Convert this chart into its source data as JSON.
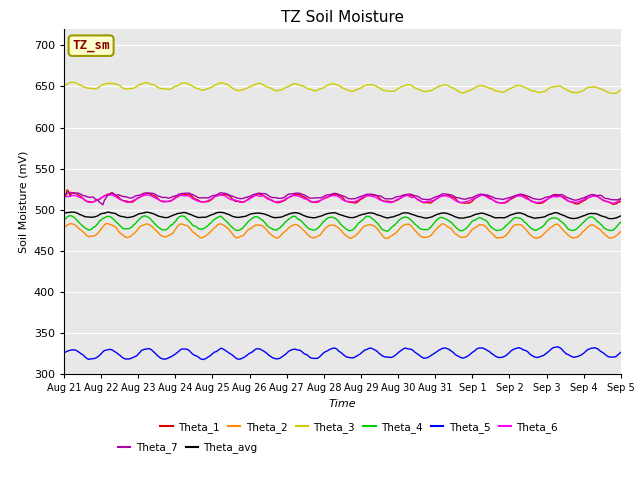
{
  "title": "TZ Soil Moisture",
  "xlabel": "Time",
  "ylabel": "Soil Moisture (mV)",
  "ylim": [
    300,
    720
  ],
  "yticks": [
    300,
    350,
    400,
    450,
    500,
    550,
    600,
    650,
    700
  ],
  "bg_color": "#e8e8e8",
  "n_points": 360,
  "lines": {
    "Theta_1": {
      "color": "#dd0000",
      "base": 515,
      "amplitude": 5,
      "trend": -0.008,
      "noise": 1.0,
      "phase": 0.0
    },
    "Theta_2": {
      "color": "#ff8800",
      "base": 475,
      "amplitude": 8,
      "trend": -0.004,
      "noise": 1.0,
      "phase": 0.3
    },
    "Theta_3": {
      "color": "#cccc00",
      "base": 651,
      "amplitude": 4,
      "trend": -0.015,
      "noise": 0.8,
      "phase": 0.1
    },
    "Theta_4": {
      "color": "#00cc00",
      "base": 484,
      "amplitude": 8,
      "trend": -0.004,
      "noise": 1.0,
      "phase": 0.5
    },
    "Theta_5": {
      "color": "#0000ff",
      "base": 324,
      "amplitude": 6,
      "trend": 0.008,
      "noise": 0.8,
      "phase": 0.2
    },
    "Theta_6": {
      "color": "#ff00ff",
      "base": 514,
      "amplitude": 4,
      "trend": -0.004,
      "noise": 0.8,
      "phase": 0.2
    },
    "Theta_7": {
      "color": "#aa00aa",
      "base": 518,
      "amplitude": 3,
      "trend": -0.008,
      "noise": 0.8,
      "phase": 0.0
    },
    "Theta_avg": {
      "color": "#000000",
      "base": 494,
      "amplitude": 3,
      "trend": -0.004,
      "noise": 0.5,
      "phase": 0.3
    }
  },
  "xtick_labels": [
    "Aug 21",
    "Aug 22",
    "Aug 23",
    "Aug 24",
    "Aug 25",
    "Aug 26",
    "Aug 27",
    "Aug 28",
    "Aug 29",
    "Aug 30",
    "Aug 31",
    "Sep 1",
    "Sep 2",
    "Sep 3",
    "Sep 4",
    "Sep 5"
  ],
  "legend_box_label": "TZ_sm",
  "legend_box_color": "#ffffcc",
  "legend_box_border": "#999900",
  "legend_text_color": "#880000"
}
